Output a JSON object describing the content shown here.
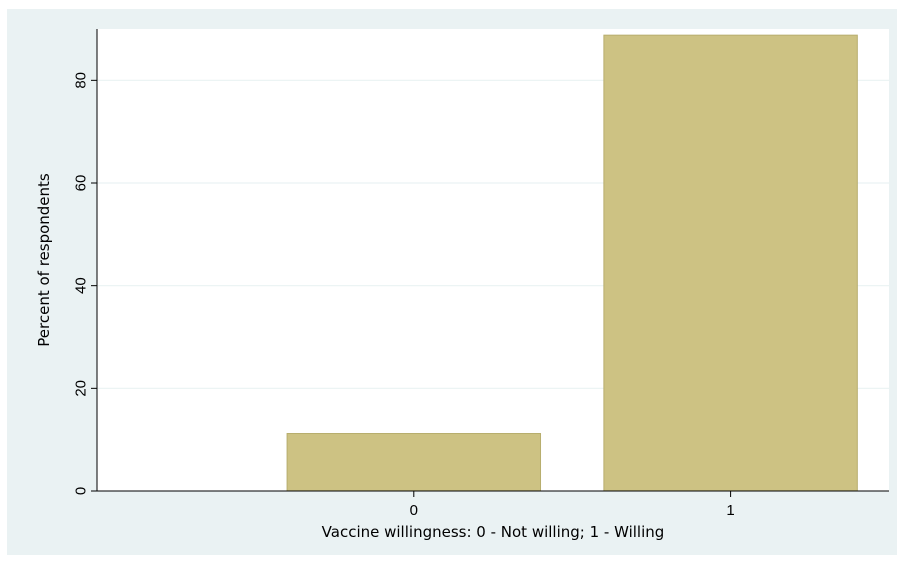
{
  "chart_data": {
    "type": "bar",
    "title": "",
    "xlabel": "Vaccine willingness: 0 - Not willing; 1 - Willing",
    "ylabel": "Percent of respondents",
    "categories": [
      "0",
      "1"
    ],
    "values": [
      11.2,
      88.8
    ],
    "ylim": [
      0,
      90
    ],
    "yticks": [
      "0",
      "20",
      "40",
      "60",
      "80"
    ],
    "grid": true,
    "legend": "none",
    "colors": {
      "bar": "#cdc283",
      "bar_edge": "#b8ae6e",
      "plot_background": "#ffffff",
      "outer_background": "#eaf2f3",
      "gridline": "#eaf2f3"
    }
  }
}
